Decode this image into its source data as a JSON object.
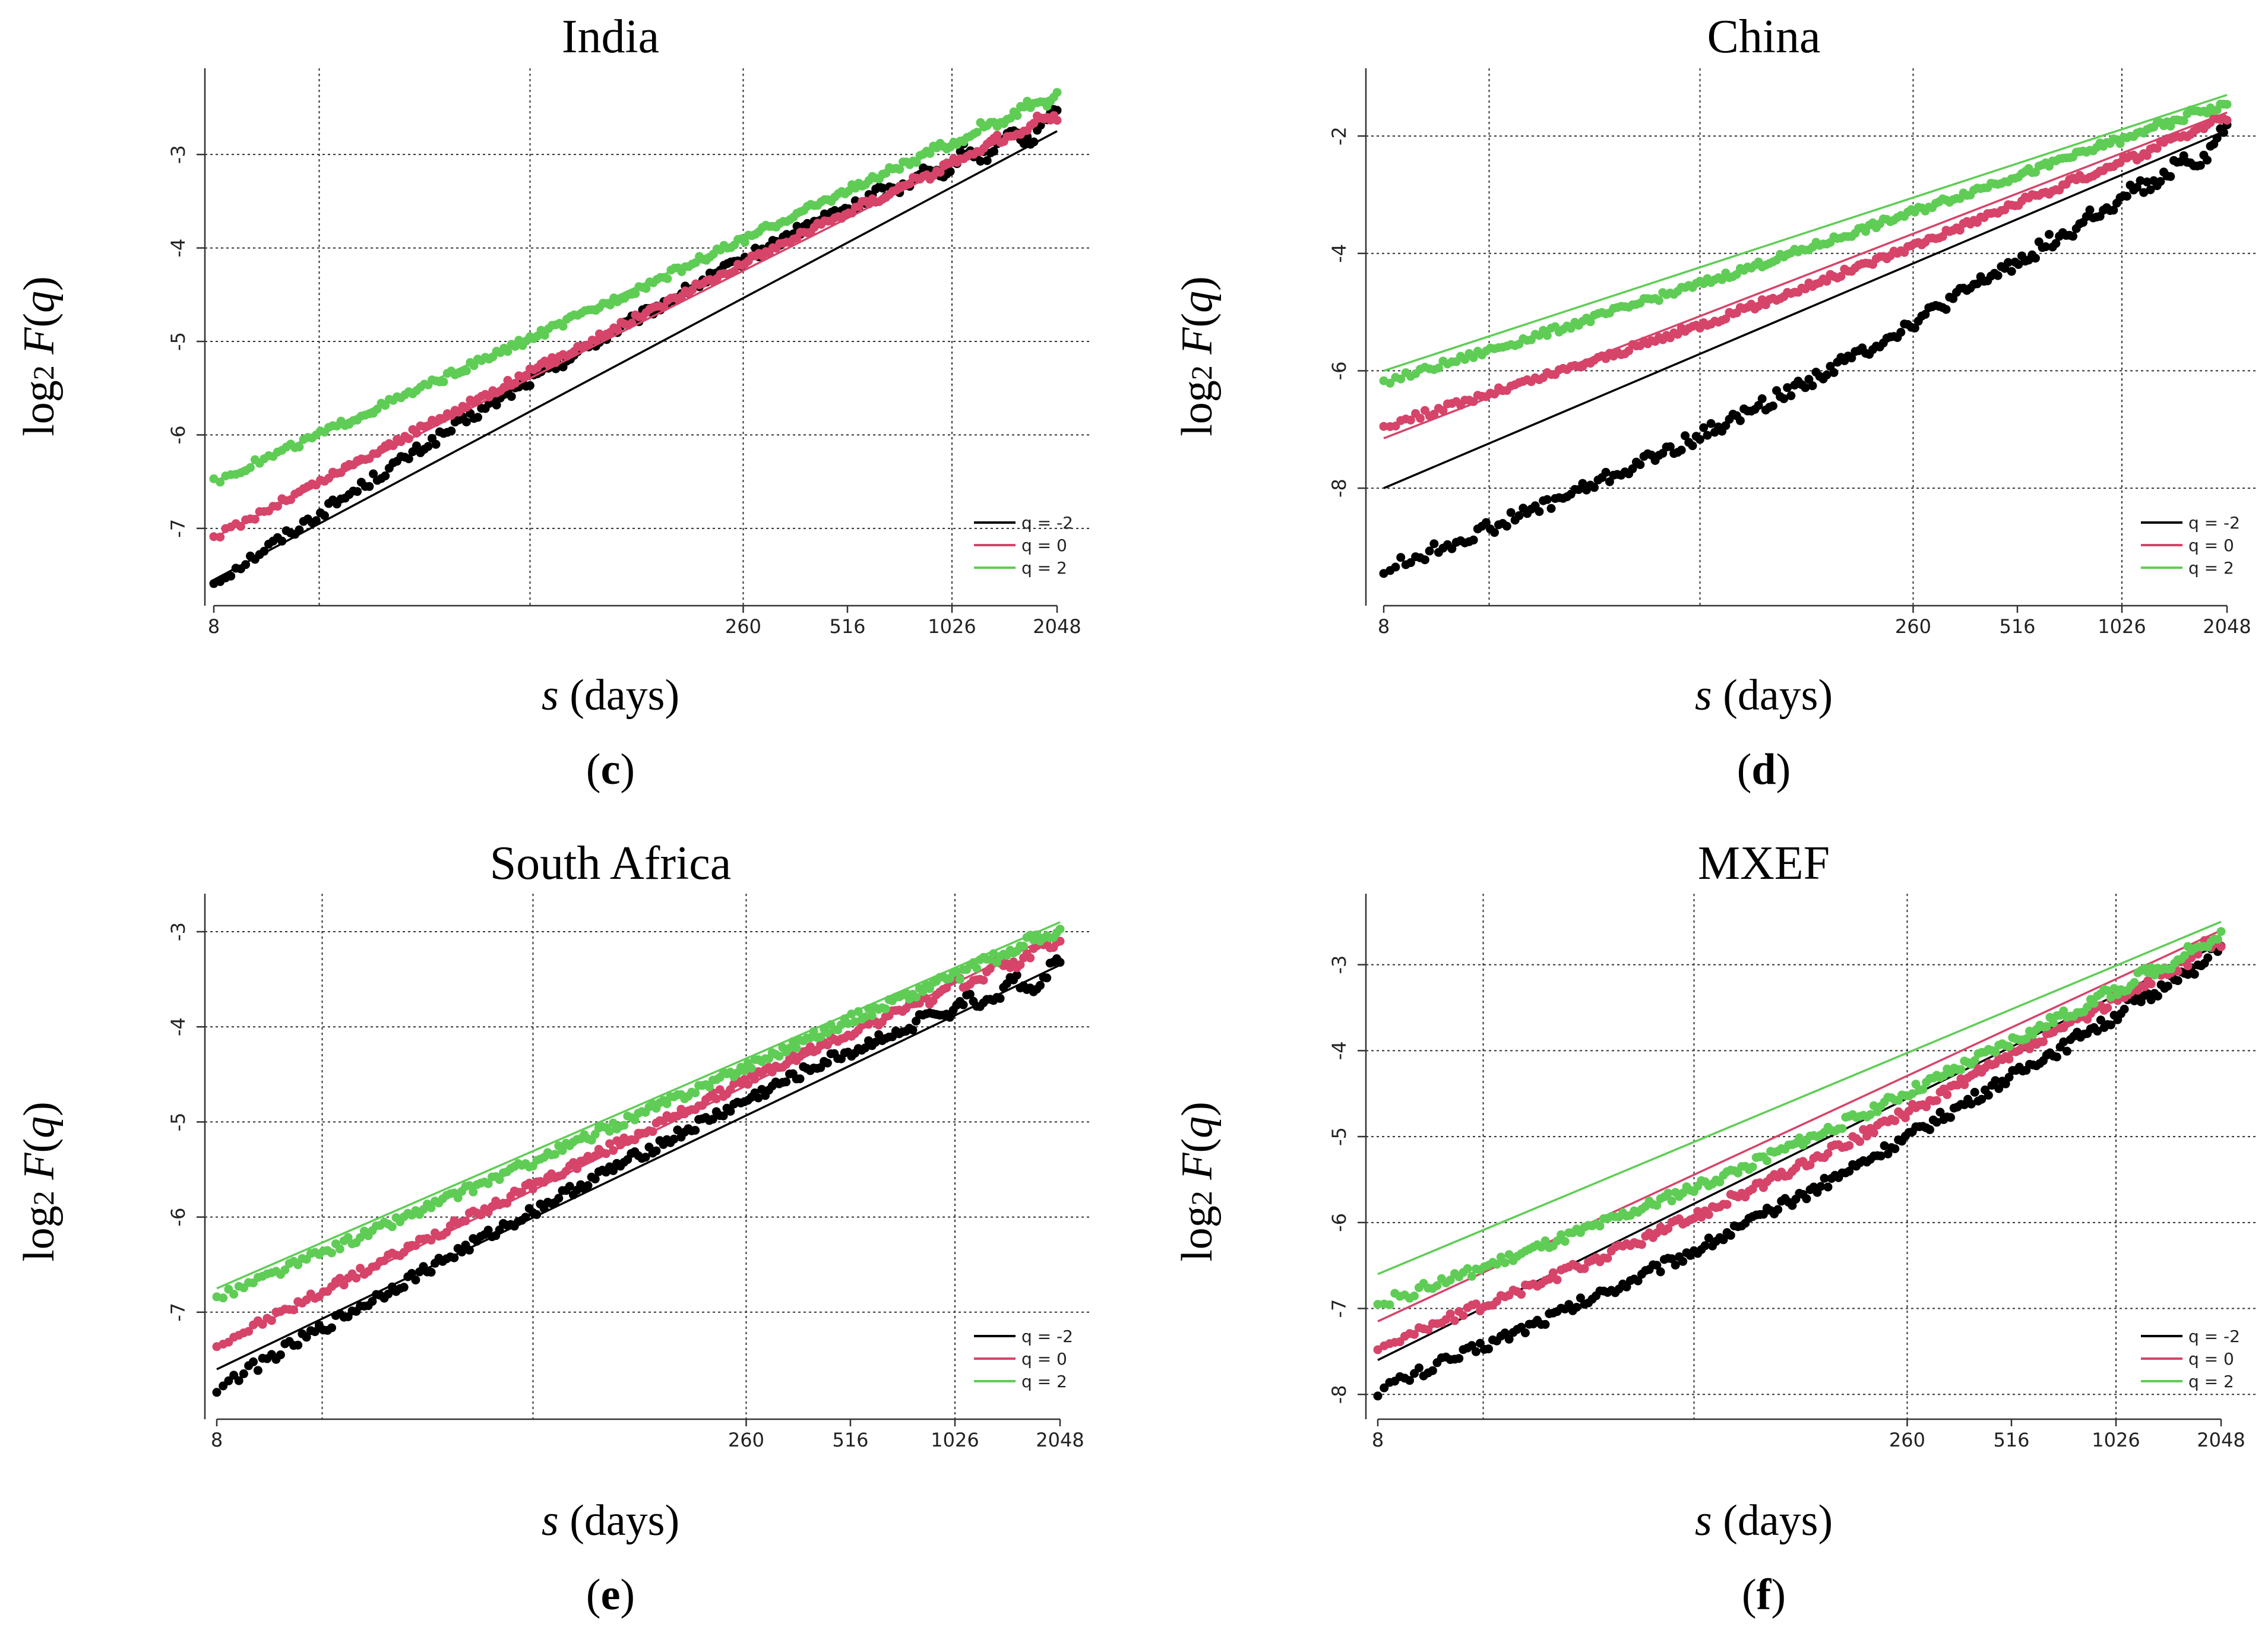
{
  "colors": {
    "q_neg2": "#000000",
    "q_0": "#d6446a",
    "q_2": "#5fcd55",
    "grid": "#333333"
  },
  "chart_data": [
    {
      "type": "scatter",
      "title": "India",
      "panel_label": "c",
      "xlabel_var": "s",
      "xlabel_unit": "(days)",
      "ylabel": "log2 F(q)",
      "xscale": "log2",
      "x_ticks": [
        8,
        260,
        516,
        1026,
        2048
      ],
      "x_grid": [
        16,
        64,
        260,
        1026
      ],
      "xlim": [
        8,
        2048
      ],
      "y_ticks": [
        -3,
        -4,
        -5,
        -6,
        -7
      ],
      "ylim": [
        -7.7,
        -2.3
      ],
      "legend": {
        "position": "bottom-right",
        "entries": [
          "q = -2",
          "q = 0",
          "q = 2"
        ]
      },
      "series": [
        {
          "name": "q = -2",
          "fit": [
            -7.55,
            -2.75
          ],
          "start": -7.58,
          "end": -2.45,
          "dip": 0.25,
          "noise": 0.06,
          "wobble": 0.28
        },
        {
          "name": "q = 0",
          "fit": [
            -7.1,
            -2.55
          ],
          "start": -7.1,
          "end": -2.5,
          "dip": 0.05,
          "noise": 0.04,
          "wobble": 0.12
        },
        {
          "name": "q = 2",
          "fit": [
            -6.5,
            -2.35
          ],
          "start": -6.5,
          "end": -2.3,
          "dip": -0.05,
          "noise": 0.04,
          "wobble": 0.1
        }
      ]
    },
    {
      "type": "scatter",
      "title": "China",
      "panel_label": "d",
      "xlabel_var": "s",
      "xlabel_unit": "(days)",
      "ylabel": "log2 F(q)",
      "xscale": "log2",
      "x_ticks": [
        8,
        260,
        516,
        1026,
        2048
      ],
      "x_grid": [
        16,
        64,
        260,
        1026
      ],
      "xlim": [
        8,
        2048
      ],
      "y_ticks": [
        -2,
        -4,
        -6,
        -8
      ],
      "ylim": [
        -9.8,
        -1.2
      ],
      "legend": {
        "position": "bottom-right",
        "entries": [
          "q = -2",
          "q = 0",
          "q = 2"
        ]
      },
      "series": [
        {
          "name": "q = -2",
          "fit": [
            -8.0,
            -1.9
          ],
          "start": -9.4,
          "end": -1.8,
          "dip": -0.6,
          "noise": 0.12,
          "wobble": 0.35
        },
        {
          "name": "q = 0",
          "fit": [
            -7.15,
            -1.6
          ],
          "start": -6.95,
          "end": -1.6,
          "dip": -0.3,
          "noise": 0.06,
          "wobble": 0.15
        },
        {
          "name": "q = 2",
          "fit": [
            -6.0,
            -1.3
          ],
          "start": -6.2,
          "end": -1.35,
          "dip": -0.15,
          "noise": 0.06,
          "wobble": 0.12
        }
      ]
    },
    {
      "type": "scatter",
      "title": "South Africa",
      "panel_label": "e",
      "xlabel_var": "s",
      "xlabel_unit": "(days)",
      "ylabel": "log2 F(q)",
      "xscale": "log2",
      "x_ticks": [
        8,
        260,
        516,
        1026,
        2048
      ],
      "x_grid": [
        16,
        64,
        260,
        1026
      ],
      "xlim": [
        8,
        2048
      ],
      "y_ticks": [
        -3,
        -4,
        -5,
        -6,
        -7
      ],
      "ylim": [
        -8.0,
        -2.85
      ],
      "legend": {
        "position": "bottom-right",
        "entries": [
          "q = -2",
          "q = 0",
          "q = 2"
        ]
      },
      "series": [
        {
          "name": "q = -2",
          "fit": [
            -7.6,
            -3.35
          ],
          "start": -7.8,
          "end": -3.2,
          "dip": 0.15,
          "noise": 0.06,
          "wobble": 0.3
        },
        {
          "name": "q = 0",
          "fit": [
            -7.35,
            -3.0
          ],
          "start": -7.35,
          "end": -3.0,
          "dip": 0.05,
          "noise": 0.05,
          "wobble": 0.15
        },
        {
          "name": "q = 2",
          "fit": [
            -6.75,
            -2.9
          ],
          "start": -6.85,
          "end": -2.9,
          "dip": -0.05,
          "noise": 0.05,
          "wobble": 0.12
        }
      ]
    },
    {
      "type": "scatter",
      "title": "MXEF",
      "panel_label": "f",
      "xlabel_var": "s",
      "xlabel_unit": "(days)",
      "ylabel": "log2 F(q)",
      "xscale": "log2",
      "x_ticks": [
        8,
        260,
        516,
        1026,
        2048
      ],
      "x_grid": [
        16,
        64,
        260,
        1026
      ],
      "xlim": [
        8,
        2048
      ],
      "y_ticks": [
        -3,
        -4,
        -5,
        -6,
        -7,
        -8
      ],
      "ylim": [
        -8.15,
        -2.45
      ],
      "legend": {
        "position": "bottom-right",
        "entries": [
          "q = -2",
          "q = 0",
          "q = 2"
        ]
      },
      "series": [
        {
          "name": "q = -2",
          "fit": [
            -7.6,
            -2.75
          ],
          "start": -7.95,
          "end": -2.75,
          "dip": -0.35,
          "noise": 0.07,
          "wobble": 0.15
        },
        {
          "name": "q = 0",
          "fit": [
            -7.15,
            -2.6
          ],
          "start": -7.45,
          "end": -2.65,
          "dip": -0.3,
          "noise": 0.06,
          "wobble": 0.12
        },
        {
          "name": "q = 2",
          "fit": [
            -6.6,
            -2.5
          ],
          "start": -6.95,
          "end": -2.6,
          "dip": -0.3,
          "noise": 0.06,
          "wobble": 0.1
        }
      ]
    }
  ]
}
